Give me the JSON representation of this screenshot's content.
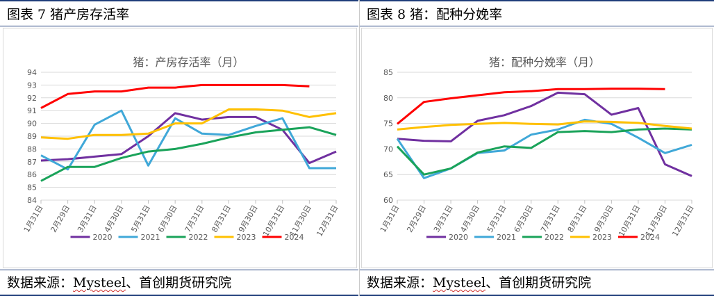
{
  "left_panel": {
    "header": "图表 7  猪产房存活率",
    "footer_prefix": "数据来源：",
    "footer_brand": "Mysteel",
    "footer_suffix": "、首创期货研究院"
  },
  "right_panel": {
    "header": "图表 8  猪：配种分娩率",
    "footer_prefix": "数据来源：",
    "footer_brand": "Mysteel",
    "footer_suffix": "、首创期货研究院"
  },
  "colors": {
    "2020": "#7030a0",
    "2021": "#40a8d8",
    "2022": "#1aa35a",
    "2023": "#ffc000",
    "2024": "#ff0000",
    "grid": "#d9d9d9",
    "axis_text": "#595959"
  },
  "chart_data": [
    {
      "type": "line",
      "title": "猪：产房存活率（月）",
      "categories": [
        "1月31日",
        "2月29日",
        "3月31日",
        "4月30日",
        "5月31日",
        "6月30日",
        "7月31日",
        "8月31日",
        "9月30日",
        "10月31日",
        "11月30日",
        "12月31日"
      ],
      "ylim": [
        84,
        94
      ],
      "yticks": [
        84,
        85,
        86,
        87,
        88,
        89,
        90,
        91,
        92,
        93,
        94
      ],
      "grid": true,
      "legend_position": "bottom",
      "series": [
        {
          "name": "2020",
          "values": [
            87.1,
            87.2,
            87.4,
            87.6,
            89.0,
            90.8,
            90.3,
            90.5,
            90.5,
            89.5,
            86.9,
            87.8
          ]
        },
        {
          "name": "2021",
          "values": [
            87.5,
            86.4,
            89.9,
            91.0,
            86.7,
            90.4,
            89.2,
            89.1,
            89.8,
            90.4,
            86.5,
            86.5
          ]
        },
        {
          "name": "2022",
          "values": [
            85.5,
            86.6,
            86.6,
            87.3,
            87.8,
            88.0,
            88.4,
            88.9,
            89.3,
            89.5,
            89.7,
            89.1
          ]
        },
        {
          "name": "2023",
          "values": [
            88.9,
            88.8,
            89.1,
            89.1,
            89.2,
            90.0,
            90.0,
            91.1,
            91.1,
            91.0,
            90.5,
            90.8
          ]
        },
        {
          "name": "2024",
          "values": [
            91.2,
            92.3,
            92.5,
            92.5,
            92.8,
            92.8,
            93.0,
            93.0,
            93.0,
            93.0,
            92.9,
            null
          ]
        }
      ]
    },
    {
      "type": "line",
      "title": "猪：配种分娩率（月）",
      "categories": [
        "1月31日",
        "2月29日",
        "3月31日",
        "4月30日",
        "5月31日",
        "6月30日",
        "7月31日",
        "8月31日",
        "9月30日",
        "10月31日",
        "11月30日",
        "12月31日"
      ],
      "ylim": [
        60,
        85
      ],
      "yticks": [
        60,
        65,
        70,
        75,
        80,
        85
      ],
      "grid": true,
      "legend_position": "bottom",
      "series": [
        {
          "name": "2020",
          "values": [
            72.0,
            71.6,
            71.5,
            75.5,
            76.6,
            78.4,
            81.0,
            80.7,
            76.7,
            78.0,
            67.0,
            64.7
          ]
        },
        {
          "name": "2021",
          "values": [
            72.0,
            64.3,
            66.2,
            69.2,
            69.7,
            72.8,
            73.8,
            75.7,
            74.9,
            72.2,
            69.2,
            70.8
          ]
        },
        {
          "name": "2022",
          "values": [
            70.5,
            65.0,
            66.2,
            69.3,
            70.5,
            70.2,
            73.3,
            73.5,
            73.3,
            73.8,
            74.0,
            73.8
          ]
        },
        {
          "name": "2023",
          "values": [
            73.8,
            74.3,
            74.7,
            74.9,
            75.1,
            74.9,
            74.8,
            75.4,
            75.3,
            75.1,
            74.5,
            74.0
          ]
        },
        {
          "name": "2024",
          "values": [
            74.9,
            79.2,
            79.9,
            80.5,
            81.1,
            81.3,
            81.7,
            81.7,
            81.8,
            81.8,
            81.7,
            null
          ]
        }
      ]
    }
  ]
}
